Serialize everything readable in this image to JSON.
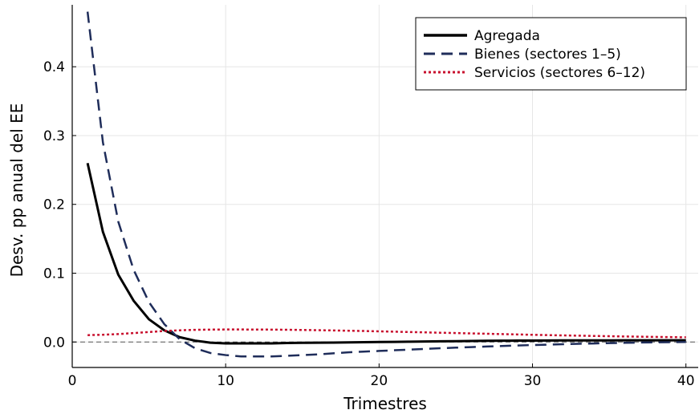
{
  "chart_data": {
    "type": "line",
    "xlabel": "Trimestres",
    "ylabel": "Desv. pp anual del EE",
    "xlim": [
      0,
      40.8
    ],
    "ylim": [
      -0.037,
      0.49
    ],
    "xticks": [
      0,
      10,
      20,
      30,
      40
    ],
    "yticks": [
      0.0,
      0.1,
      0.2,
      0.3,
      0.4
    ],
    "xtick_labels": [
      "0",
      "10",
      "20",
      "30",
      "40"
    ],
    "ytick_labels": [
      "0.0",
      "0.1",
      "0.2",
      "0.3",
      "0.4"
    ],
    "grid": true,
    "zero_line": true,
    "legend_position": "top-right",
    "series": [
      {
        "name": "Agregada",
        "color": "#000000",
        "style": "solid",
        "x": [
          1,
          2,
          3,
          4,
          5,
          6,
          7,
          8,
          9,
          10,
          11,
          12,
          13,
          14,
          15,
          16,
          17,
          18,
          19,
          20,
          21,
          22,
          23,
          24,
          25,
          26,
          27,
          28,
          29,
          30,
          31,
          32,
          33,
          34,
          35,
          36,
          37,
          38,
          39,
          40
        ],
        "y": [
          0.26,
          0.16,
          0.098,
          0.06,
          0.033,
          0.017,
          0.007,
          0.002,
          -0.001,
          -0.002,
          -0.002,
          -0.002,
          -0.002,
          -0.0015,
          -0.0012,
          -0.001,
          -0.0008,
          -0.0005,
          -0.0002,
          0.0,
          0.0002,
          0.0005,
          0.0008,
          0.001,
          0.0012,
          0.0015,
          0.0017,
          0.0019,
          0.002,
          0.0021,
          0.0022,
          0.0023,
          0.0023,
          0.0024,
          0.0024,
          0.0025,
          0.0025,
          0.0025,
          0.0025,
          0.0025
        ]
      },
      {
        "name": "Bienes (sectores 1–5)",
        "color": "#1f2d5a",
        "style": "dashed",
        "x": [
          1,
          2,
          3,
          4,
          5,
          6,
          7,
          8,
          9,
          10,
          11,
          12,
          13,
          14,
          15,
          16,
          17,
          18,
          19,
          20,
          21,
          22,
          23,
          24,
          25,
          26,
          27,
          28,
          29,
          30,
          31,
          32,
          33,
          34,
          35,
          36,
          37,
          38,
          39,
          40
        ],
        "y": [
          0.48,
          0.29,
          0.175,
          0.105,
          0.058,
          0.026,
          0.004,
          -0.009,
          -0.016,
          -0.019,
          -0.021,
          -0.021,
          -0.021,
          -0.02,
          -0.019,
          -0.018,
          -0.0165,
          -0.015,
          -0.014,
          -0.013,
          -0.012,
          -0.011,
          -0.01,
          -0.009,
          -0.0082,
          -0.0074,
          -0.0066,
          -0.0058,
          -0.0051,
          -0.0044,
          -0.0038,
          -0.0032,
          -0.0026,
          -0.0021,
          -0.0016,
          -0.0012,
          -0.0008,
          -0.0005,
          -0.0002,
          0.0
        ]
      },
      {
        "name": "Servicios (sectores 6–12)",
        "color": "#c8102e",
        "style": "dotted",
        "x": [
          1,
          2,
          3,
          4,
          5,
          6,
          7,
          8,
          9,
          10,
          11,
          12,
          13,
          14,
          15,
          16,
          17,
          18,
          19,
          20,
          21,
          22,
          23,
          24,
          25,
          26,
          27,
          28,
          29,
          30,
          31,
          32,
          33,
          34,
          35,
          36,
          37,
          38,
          39,
          40
        ],
        "y": [
          0.01,
          0.0105,
          0.0115,
          0.013,
          0.0145,
          0.016,
          0.017,
          0.0177,
          0.018,
          0.0182,
          0.0182,
          0.0181,
          0.018,
          0.0178,
          0.0175,
          0.0172,
          0.0168,
          0.0164,
          0.016,
          0.0155,
          0.015,
          0.0145,
          0.014,
          0.0135,
          0.013,
          0.0125,
          0.012,
          0.0115,
          0.011,
          0.0105,
          0.01,
          0.0096,
          0.0092,
          0.0088,
          0.0084,
          0.008,
          0.0077,
          0.0074,
          0.0071,
          0.0068
        ]
      }
    ]
  }
}
